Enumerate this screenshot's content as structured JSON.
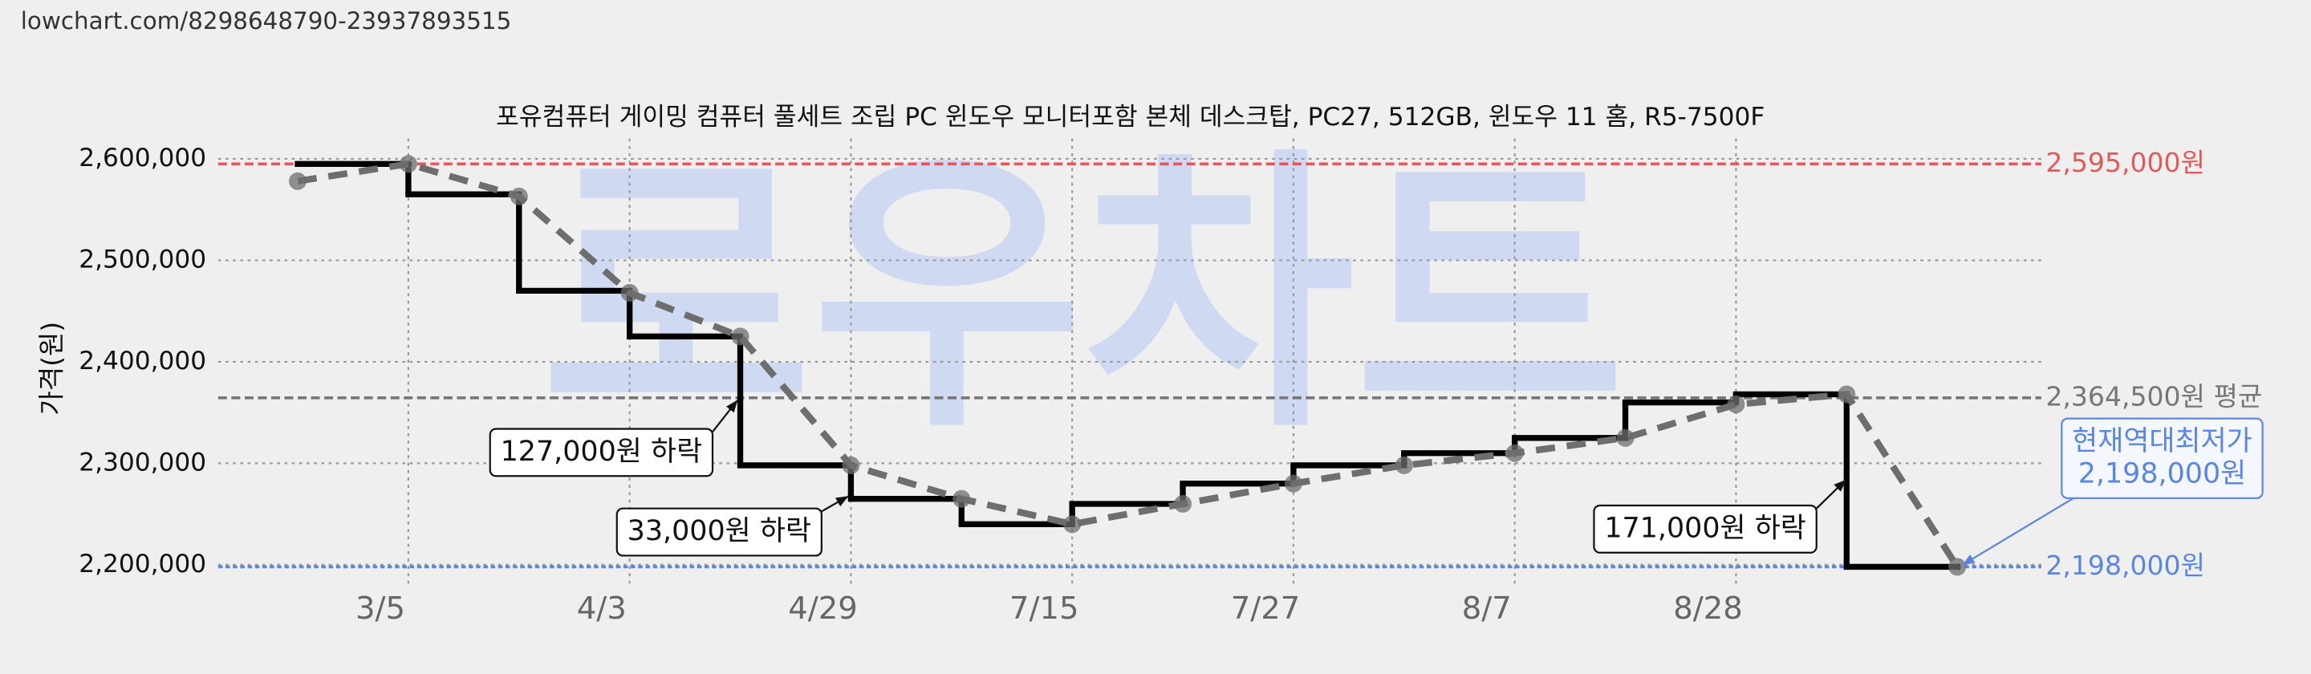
{
  "chart_data": {
    "type": "line",
    "url": "lowchart.com/8298648790-23937893515",
    "watermark": "로우차트",
    "title": "포유컴퓨터 게이밍 컴퓨터 풀세트 조립 PC 윈도우 모니터포함 본체 데스크탑, PC27, 512GB, 윈도우 11 홈, R5-7500F",
    "y_label": "가격(원)",
    "categories": [
      null,
      "3/5",
      null,
      "4/3",
      null,
      "4/29",
      null,
      "7/15",
      null,
      "7/27",
      null,
      "8/7",
      null,
      "8/28",
      null,
      null
    ],
    "series": [
      {
        "color": "#000000",
        "style": "step",
        "values": [
          2595000,
          2565000,
          2470000,
          2425000,
          2298000,
          2265000,
          2240000,
          2260000,
          2280000,
          2298000,
          2310000,
          2325000,
          2360000,
          2368000,
          2198000,
          2198000
        ]
      },
      {
        "color": "#6e6e6e",
        "style": "dashed",
        "values": [
          2578000,
          2595000,
          2563000,
          2468000,
          2425000,
          2298000,
          2265000,
          2240000,
          2260000,
          2280000,
          2298000,
          2310000,
          2325000,
          2358000,
          2368000,
          2198000
        ]
      }
    ],
    "ylim": [
      2180000,
      2620000
    ],
    "yticks": [
      {
        "value": 2200000,
        "label": "2,200,000"
      },
      {
        "value": 2300000,
        "label": "2,300,000"
      },
      {
        "value": 2400000,
        "label": "2,400,000"
      },
      {
        "value": 2500000,
        "label": "2,500,000"
      },
      {
        "value": 2600000,
        "label": "2,600,000"
      }
    ],
    "grid": true,
    "reference_lines": [
      {
        "value": 2595000,
        "label": "2,595,000원",
        "color": "#e05a5a"
      },
      {
        "value": 2364500,
        "label": "2,364,500원 평균",
        "color": "#777777"
      },
      {
        "value": 2198000,
        "label": "2,198,000원",
        "color": "#5b86e0"
      }
    ],
    "annotations": [
      {
        "lines": [
          "127,000원 하락"
        ]
      },
      {
        "lines": [
          "33,000원 하락"
        ]
      },
      {
        "lines": [
          "171,000원 하락"
        ]
      },
      {
        "lines": [
          "현재역대최저가",
          "2,198,000원"
        ],
        "color": "#5b86e0"
      }
    ]
  }
}
